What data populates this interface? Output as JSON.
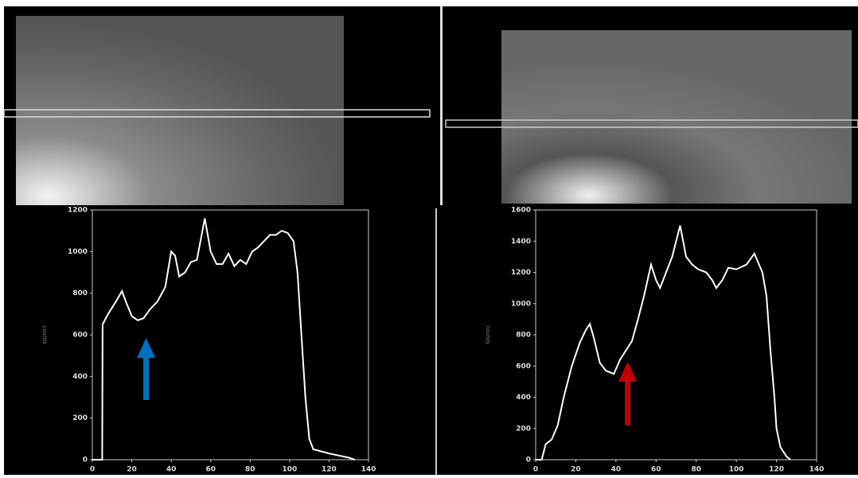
{
  "chart_data": [
    {
      "type": "line",
      "ylabel": "counts",
      "color": "#ffffff",
      "x": [
        0,
        5,
        5.2,
        8,
        12,
        15,
        17,
        20,
        23,
        26,
        29,
        33,
        37,
        40,
        42,
        44,
        47,
        50,
        53,
        57,
        60,
        63,
        66,
        69,
        72,
        75,
        78,
        81,
        84,
        87,
        90,
        93,
        96,
        99,
        102,
        104,
        106,
        108,
        110,
        112,
        116,
        120,
        125,
        130,
        133
      ],
      "values": [
        0,
        0,
        650,
        700,
        760,
        810,
        760,
        690,
        670,
        680,
        720,
        760,
        830,
        1000,
        980,
        880,
        900,
        950,
        960,
        1160,
        1000,
        940,
        940,
        990,
        930,
        960,
        940,
        1000,
        1020,
        1050,
        1080,
        1080,
        1100,
        1090,
        1050,
        900,
        600,
        300,
        100,
        50,
        40,
        30,
        20,
        10,
        0
      ],
      "xlim": [
        0,
        140
      ],
      "ylim": [
        0,
        1200
      ],
      "xticks": [
        0,
        20,
        40,
        60,
        80,
        100,
        120,
        140
      ],
      "yticks": [
        0,
        200,
        400,
        600,
        800,
        1000,
        1200
      ]
    },
    {
      "type": "line",
      "ylabel": "counts",
      "color": "#ffffff",
      "x": [
        0,
        3,
        5,
        8,
        11,
        14,
        18,
        22,
        25,
        27,
        29,
        32,
        35,
        39,
        42,
        45,
        48,
        51,
        54,
        57.5,
        60,
        62,
        65,
        68,
        72,
        75,
        78,
        81,
        85,
        88,
        90,
        93,
        96,
        100,
        105,
        109,
        113,
        115,
        117,
        119,
        120,
        122,
        125,
        127
      ],
      "values": [
        0,
        0,
        100,
        130,
        220,
        400,
        600,
        750,
        830,
        870,
        780,
        620,
        570,
        550,
        640,
        700,
        760,
        900,
        1050,
        1250,
        1150,
        1100,
        1200,
        1300,
        1500,
        1300,
        1250,
        1220,
        1200,
        1150,
        1100,
        1150,
        1230,
        1220,
        1250,
        1320,
        1200,
        1050,
        700,
        400,
        200,
        80,
        20,
        0
      ],
      "xlim": [
        0,
        140
      ],
      "ylim": [
        0,
        1600
      ],
      "xticks": [
        0,
        20,
        40,
        60,
        80,
        100,
        120,
        140
      ],
      "yticks": [
        0,
        200,
        400,
        600,
        800,
        1000,
        1200,
        1400,
        1600
      ]
    }
  ]
}
